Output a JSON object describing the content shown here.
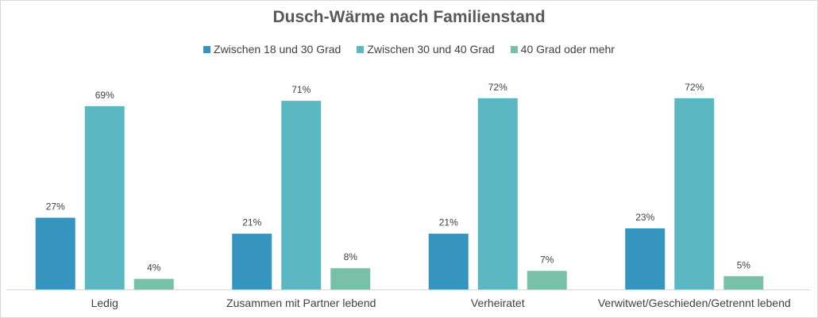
{
  "chart_data": {
    "type": "bar",
    "title": "Dusch-Wärme nach Familienstand",
    "categories": [
      "Ledig",
      "Zusammen mit Partner lebend",
      "Verheiratet",
      "Verwitwet/Geschieden/Getrennt lebend"
    ],
    "series": [
      {
        "name": "Zwischen 18 und 30 Grad",
        "color": "#3595bf",
        "values": [
          27,
          21,
          21,
          23
        ],
        "labels": [
          "27%",
          "21%",
          "21%",
          "23%"
        ]
      },
      {
        "name": "Zwischen 30 und 40 Grad",
        "color": "#5bb8c2",
        "values": [
          69,
          71,
          72,
          72
        ],
        "labels": [
          "69%",
          "71%",
          "72%",
          "72%"
        ]
      },
      {
        "name": "40 Grad oder mehr",
        "color": "#78c1a8",
        "values": [
          4,
          8,
          7,
          5
        ],
        "labels": [
          "4%",
          "8%",
          "7%",
          "5%"
        ]
      }
    ],
    "value_unit": "%",
    "ylim": [
      0,
      80
    ],
    "grid": false,
    "legend_position": "top"
  }
}
